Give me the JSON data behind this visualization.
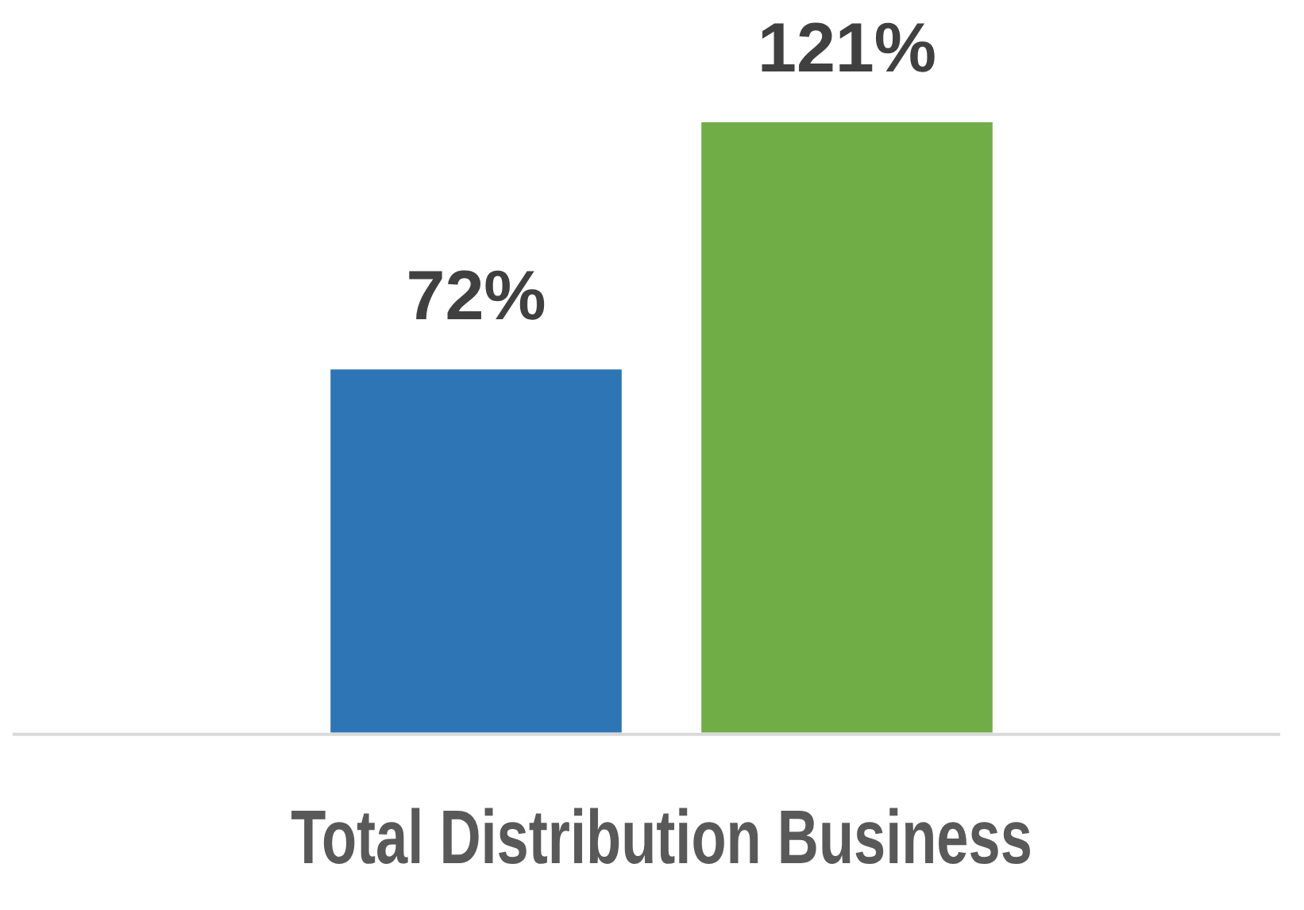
{
  "chart_data": {
    "type": "bar",
    "xlabel": "Total Distribution Business",
    "categories": [
      null,
      null
    ],
    "series": [
      {
        "colors": [
          "#2e75b6",
          "#70ad47"
        ],
        "values": [
          72,
          121
        ],
        "value_labels": [
          "72%",
          "121%"
        ]
      }
    ]
  }
}
